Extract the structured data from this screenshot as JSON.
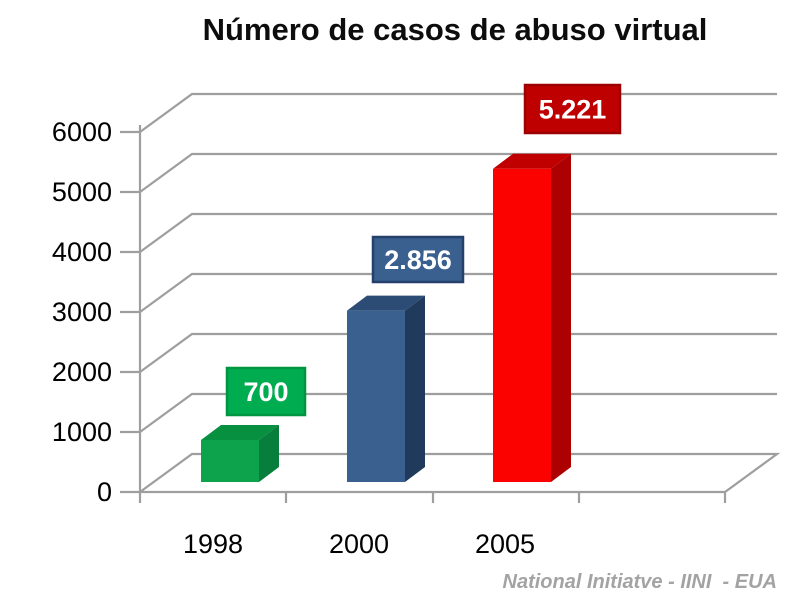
{
  "title": "Número de casos de abuso virtual",
  "source": "National Initiatve - IINI  - EUA",
  "chart_data": {
    "type": "bar",
    "style": "3d-column",
    "title": "Número de casos de abuso virtual",
    "xlabel": "",
    "ylabel": "",
    "categories": [
      "1998",
      "2000",
      "2005"
    ],
    "values": [
      700,
      2856,
      5221
    ],
    "value_labels": [
      "700",
      "2.856",
      "5.221"
    ],
    "ylim": [
      0,
      6000
    ],
    "y_ticks": [
      0,
      1000,
      2000,
      3000,
      4000,
      5000,
      6000
    ],
    "grid": true,
    "legend_position": "none",
    "axis_color": "#9e9e9e",
    "text_color": "#000000",
    "series_colors": [
      {
        "front": "#0da24c",
        "top": "#069040",
        "side": "#077e3b",
        "label_bg": "#00ac50",
        "label_border": "#00953f",
        "label_text": "#ffffff"
      },
      {
        "front": "#3a608f",
        "top": "#2d4c75",
        "side": "#203a5c",
        "label_bg": "#3a608f",
        "label_border": "#24406b",
        "label_text": "#ffffff"
      },
      {
        "front": "#fb0200",
        "top": "#c00000",
        "side": "#ad0000",
        "label_bg": "#be0000",
        "label_border": "#9c0000",
        "label_text": "#ffffff"
      }
    ],
    "source_note": "National Initiatve - IINI  - EUA"
  }
}
